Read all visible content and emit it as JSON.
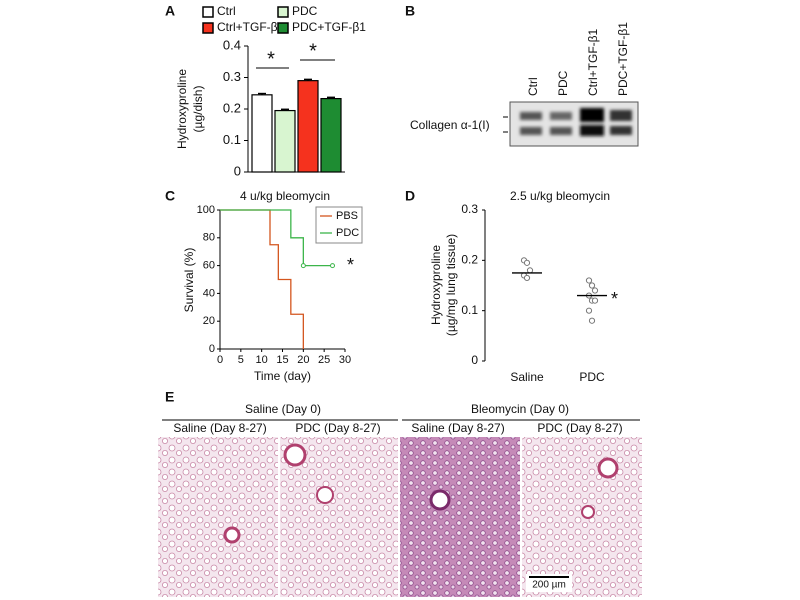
{
  "panel_labels": [
    "A",
    "B",
    "C",
    "D",
    "E"
  ],
  "chart_data": [
    {
      "type": "bar",
      "ylabel": [
        "Hydroxyproline",
        "(µg/dish)"
      ],
      "ylim": [
        0,
        0.4
      ],
      "yticks": [
        0,
        0.1,
        0.2,
        0.3,
        0.4
      ],
      "series": [
        {
          "name": "Ctrl",
          "color": "#ffffff",
          "values": [
            0.245
          ],
          "errors": [
            0.004
          ]
        },
        {
          "name": "PDC",
          "color": "#d8f5d0",
          "values": [
            0.195
          ],
          "errors": [
            0.004
          ]
        },
        {
          "name": "Ctrl+TGF-β1",
          "color": "#f5321e",
          "values": [
            0.29
          ],
          "errors": [
            0.004
          ]
        },
        {
          "name": "PDC+TGF-β1",
          "color": "#1e8c32",
          "values": [
            0.233
          ],
          "errors": [
            0.004
          ]
        }
      ],
      "annotations": [
        "*",
        "*"
      ]
    },
    {
      "type": "line",
      "title": "4 u/kg bleomycin",
      "xlabel": "Time (day)",
      "ylabel": "Survival (%)",
      "xlim": [
        0,
        30
      ],
      "xticks": [
        0,
        5,
        10,
        15,
        20,
        25,
        30
      ],
      "ylim": [
        0,
        100
      ],
      "yticks": [
        0,
        20,
        40,
        60,
        80,
        100
      ],
      "legend": "upper right",
      "series": [
        {
          "name": "PBS",
          "color": "#d4561e",
          "x": [
            0,
            12,
            12,
            14,
            14,
            17,
            17,
            20,
            20
          ],
          "values": [
            100,
            100,
            75,
            75,
            50,
            50,
            25,
            25,
            0
          ]
        },
        {
          "name": "PDC",
          "color": "#3cb54a",
          "x": [
            0,
            17,
            17,
            20,
            20,
            27
          ],
          "values": [
            100,
            100,
            80,
            80,
            60,
            60
          ],
          "censored_x": [
            20,
            27
          ],
          "censored_values": [
            60,
            60
          ]
        }
      ],
      "annotation": "*"
    },
    {
      "type": "scatter",
      "title": "2.5 u/kg bleomycin",
      "ylabel": [
        "Hydroxyproline",
        "(µg/mg lung tissue)"
      ],
      "categories": [
        "Saline",
        "PDC"
      ],
      "values": [
        [
          0.2,
          0.195,
          0.18,
          0.17,
          0.165
        ],
        [
          0.16,
          0.15,
          0.14,
          0.13,
          0.12,
          0.12,
          0.1,
          0.08
        ]
      ],
      "means": [
        0.175,
        0.13
      ],
      "ylim": [
        0,
        0.3
      ],
      "yticks": [
        0,
        0.1,
        0.2,
        0.3
      ],
      "annotation": "*"
    }
  ],
  "blot": {
    "lanes": [
      "Ctrl",
      "PDC",
      "Ctrl+TGF-β1",
      "PDC+TGF-β1"
    ],
    "protein": "Collagen α-1(I)"
  },
  "histology": {
    "groups": [
      {
        "label": "Saline (Day 0)",
        "images": [
          "Saline (Day 8-27)",
          "PDC (Day 8-27)"
        ]
      },
      {
        "label": "Bleomycin (Day 0)",
        "images": [
          "Saline (Day 8-27)",
          "PDC (Day 8-27)"
        ]
      }
    ],
    "scale_bar": "200 µm"
  }
}
